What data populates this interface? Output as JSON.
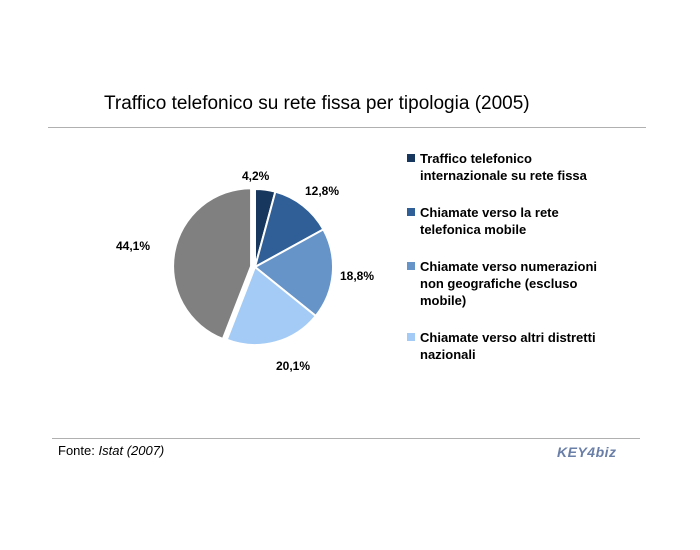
{
  "header": {
    "title": "Traffico telefonico su rete fissa per tipologia (2005)"
  },
  "footer": {
    "source_prefix": "Fonte:",
    "source_name": "Istat",
    "source_year": "(2007)",
    "logo_text": "KEY4biz"
  },
  "colors": {
    "series": [
      "#17375e",
      "#2f5f96",
      "#6694c8",
      "#a3cbf5",
      "#808080"
    ]
  },
  "chart_data": {
    "type": "pie",
    "title": "Traffico telefonico su rete fissa per tipologia (2005)",
    "categories": [
      "Traffico telefonico internazionale su rete fissa",
      "Chiamate verso la rete telefonica mobile",
      "Chiamate verso numerazioni non geografiche (escluso mobile)",
      "Chiamate verso altri distretti nazionali",
      ""
    ],
    "values": [
      4.2,
      12.8,
      18.8,
      20.1,
      44.1
    ],
    "labels": [
      "4,2%",
      "12,8%",
      "18,8%",
      "20,1%",
      "44,1%"
    ],
    "legend": {
      "position": "right",
      "entries": [
        "Traffico telefonico internazionale su rete fissa",
        "Chiamate verso la rete telefonica mobile",
        "Chiamate verso numerazioni non geografiche (escluso mobile)",
        "Chiamate verso altri distretti nazionali"
      ]
    }
  }
}
